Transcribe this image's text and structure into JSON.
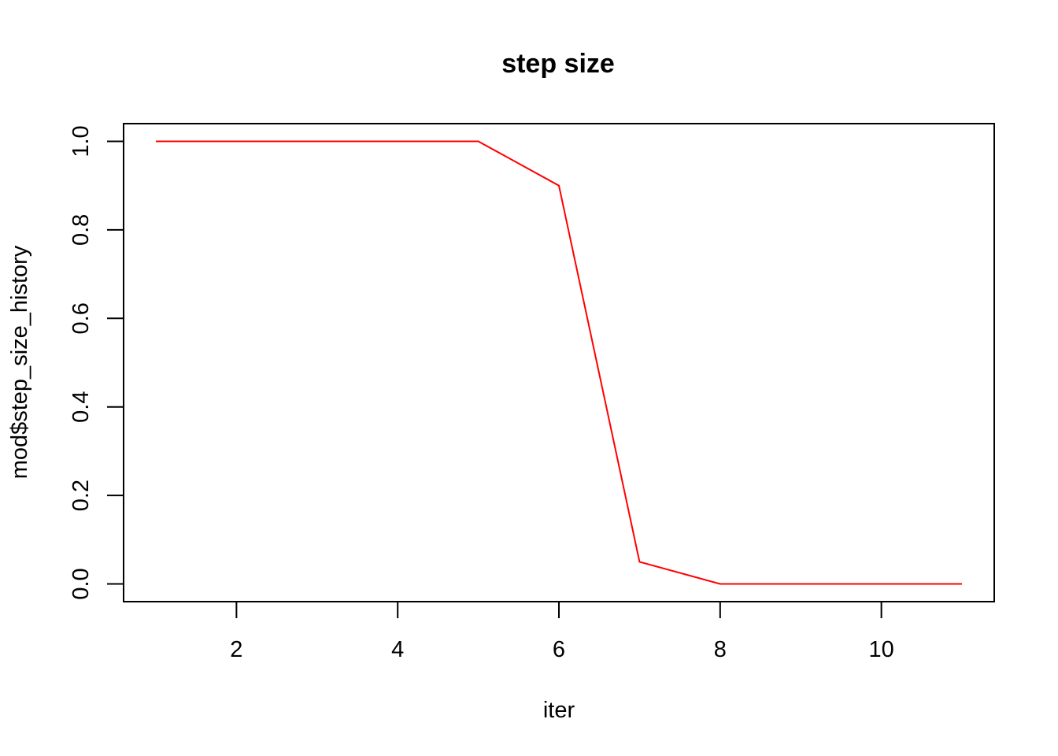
{
  "chart_data": {
    "type": "line",
    "title": "step size",
    "xlabel": "iter",
    "ylabel": "mod$step_size_history",
    "x": [
      1,
      2,
      3,
      4,
      5,
      6,
      7,
      8,
      9,
      10,
      11
    ],
    "series": [
      {
        "values": [
          1.0,
          1.0,
          1.0,
          1.0,
          1.0,
          0.9,
          0.05,
          0.0,
          0.0,
          0.0,
          0.0
        ],
        "color": "#ff0000"
      }
    ],
    "xlim": [
      0.6,
      11.4
    ],
    "ylim": [
      -0.04,
      1.04
    ],
    "xticks": [
      2,
      4,
      6,
      8,
      10
    ],
    "xtick_labels": [
      "2",
      "4",
      "6",
      "8",
      "10"
    ],
    "yticks": [
      0.0,
      0.2,
      0.4,
      0.6,
      0.8,
      1.0
    ],
    "ytick_labels": [
      "0.0",
      "0.2",
      "0.4",
      "0.6",
      "0.8",
      "1.0"
    ],
    "grid": false,
    "legend": "none"
  }
}
